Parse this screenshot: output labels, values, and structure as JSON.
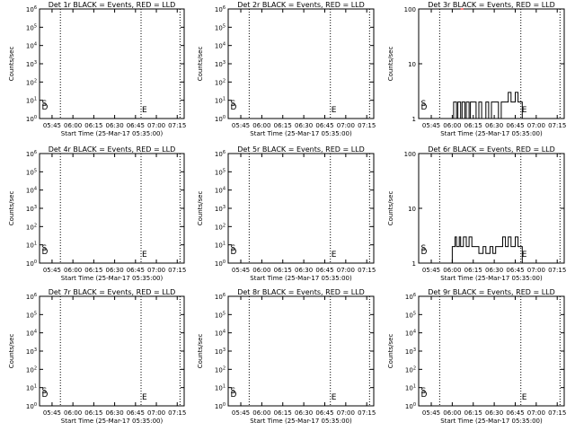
{
  "chart_data": [
    {
      "type": "line",
      "title": "Det 1r BLACK = Events, RED = LLD",
      "ylabel": "Counts/sec",
      "xlabel": "Start Time (25-Mar-17 05:35:00)",
      "yscale": "log",
      "ylim": [
        1,
        1000000
      ],
      "yticks": [
        "10^0",
        "10^1",
        "10^2",
        "10^3",
        "10^4",
        "10^5",
        "10^6"
      ],
      "xlim": [
        "05:36",
        "07:20"
      ],
      "xticks": [
        "05:45",
        "06:00",
        "06:15",
        "06:30",
        "06:45",
        "07:00",
        "07:15"
      ],
      "markers": [
        {
          "label": "D",
          "x": "05:37"
        },
        {
          "label": "S",
          "x": "05:37"
        },
        {
          "label": "E",
          "x": "06:49"
        }
      ],
      "series": [
        {
          "color": "#000000",
          "x": [],
          "values": []
        }
      ]
    },
    {
      "type": "line",
      "title": "Det 2r BLACK = Events, RED = LLD",
      "ylabel": "Counts/sec",
      "xlabel": "Start Time (25-Mar-17 05:35:00)",
      "yscale": "log",
      "ylim": [
        1,
        1000000
      ],
      "yticks": [
        "10^0",
        "10^1",
        "10^2",
        "10^3",
        "10^4",
        "10^5",
        "10^6"
      ],
      "xlim": [
        "05:36",
        "07:20"
      ],
      "xticks": [
        "05:45",
        "06:00",
        "06:15",
        "06:30",
        "06:45",
        "07:00",
        "07:15"
      ],
      "markers": [
        {
          "label": "D",
          "x": "05:37"
        },
        {
          "label": "S",
          "x": "05:37"
        },
        {
          "label": "E",
          "x": "06:49"
        }
      ],
      "series": [
        {
          "color": "#000000",
          "x": [],
          "values": []
        }
      ]
    },
    {
      "type": "line",
      "title": "Det 3r BLACK = Events, RED = LLD",
      "ylabel": "Counts/sec",
      "xlabel": "Start Time (25-Mar-17 05:35:00)",
      "yscale": "log",
      "ylim": [
        1,
        100
      ],
      "yticks": [
        "1",
        "10",
        "100"
      ],
      "xlim": [
        "05:36",
        "07:20"
      ],
      "xticks": [
        "05:45",
        "06:00",
        "06:15",
        "06:30",
        "06:45",
        "07:00",
        "07:15"
      ],
      "markers": [
        {
          "label": "D",
          "x": "05:37"
        },
        {
          "label": "S",
          "x": "05:37"
        },
        {
          "label": "E",
          "x": "06:49"
        }
      ],
      "series": [
        {
          "color": "#000000",
          "x": [
            "06:00",
            "06:01",
            "06:03",
            "06:04",
            "06:06",
            "06:07",
            "06:09",
            "06:10",
            "06:12",
            "06:13",
            "06:17",
            "06:19",
            "06:21",
            "06:24",
            "06:26",
            "06:28",
            "06:31",
            "06:33",
            "06:35",
            "06:38",
            "06:40",
            "06:42",
            "06:43",
            "06:45",
            "06:47",
            "06:50"
          ],
          "values": [
            1,
            2,
            1,
            2,
            1,
            2,
            1,
            2,
            1,
            2,
            1,
            2,
            1,
            2,
            1,
            2,
            2,
            1,
            2,
            2,
            3,
            2,
            2,
            3,
            2,
            1
          ]
        },
        {
          "color": "#ff0000",
          "x": [
            "06:06",
            "06:08"
          ],
          "values": [
            100,
            100
          ]
        }
      ]
    },
    {
      "type": "line",
      "title": "Det 4r BLACK = Events, RED = LLD",
      "ylabel": "Counts/sec",
      "xlabel": "Start Time (25-Mar-17 05:35:00)",
      "yscale": "log",
      "ylim": [
        1,
        1000000
      ],
      "yticks": [
        "10^0",
        "10^1",
        "10^2",
        "10^3",
        "10^4",
        "10^5",
        "10^6"
      ],
      "xlim": [
        "05:36",
        "07:20"
      ],
      "xticks": [
        "05:45",
        "06:00",
        "06:15",
        "06:30",
        "06:45",
        "07:00",
        "07:15"
      ],
      "markers": [
        {
          "label": "D",
          "x": "05:37"
        },
        {
          "label": "S",
          "x": "05:37"
        },
        {
          "label": "E",
          "x": "06:49"
        }
      ],
      "series": [
        {
          "color": "#000000",
          "x": [],
          "values": []
        }
      ]
    },
    {
      "type": "line",
      "title": "Det 5r BLACK = Events, RED = LLD",
      "ylabel": "Counts/sec",
      "xlabel": "Start Time (25-Mar-17 05:35:00)",
      "yscale": "log",
      "ylim": [
        1,
        1000000
      ],
      "yticks": [
        "10^0",
        "10^1",
        "10^2",
        "10^3",
        "10^4",
        "10^5",
        "10^6"
      ],
      "xlim": [
        "05:36",
        "07:20"
      ],
      "xticks": [
        "05:45",
        "06:00",
        "06:15",
        "06:30",
        "06:45",
        "07:00",
        "07:15"
      ],
      "markers": [
        {
          "label": "D",
          "x": "05:37"
        },
        {
          "label": "S",
          "x": "05:37"
        },
        {
          "label": "E",
          "x": "06:49"
        }
      ],
      "series": [
        {
          "color": "#000000",
          "x": [],
          "values": []
        }
      ]
    },
    {
      "type": "line",
      "title": "Det 6r BLACK = Events, RED = LLD",
      "ylabel": "Counts/sec",
      "xlabel": "Start Time (25-Mar-17 05:35:00)",
      "yscale": "log",
      "ylim": [
        1,
        100
      ],
      "yticks": [
        "1",
        "10",
        "100"
      ],
      "xlim": [
        "05:36",
        "07:20"
      ],
      "xticks": [
        "05:45",
        "06:00",
        "06:15",
        "06:30",
        "06:45",
        "07:00",
        "07:15"
      ],
      "markers": [
        {
          "label": "D",
          "x": "05:37"
        },
        {
          "label": "S",
          "x": "05:37"
        },
        {
          "label": "E",
          "x": "06:49"
        }
      ],
      "series": [
        {
          "color": "#000000",
          "x": [
            "05:59",
            "06:00",
            "06:02",
            "06:03",
            "06:05",
            "06:06",
            "06:08",
            "06:10",
            "06:12",
            "06:14",
            "06:17",
            "06:19",
            "06:22",
            "06:24",
            "06:27",
            "06:29",
            "06:31",
            "06:34",
            "06:36",
            "06:38",
            "06:40",
            "06:42",
            "06:45",
            "06:47",
            "06:50"
          ],
          "values": [
            1,
            2,
            3,
            2,
            3,
            2,
            3,
            2,
            3,
            2,
            2,
            1.5,
            2,
            1.5,
            2,
            1.5,
            2,
            2,
            3,
            2,
            3,
            2,
            3,
            2,
            1
          ]
        }
      ]
    },
    {
      "type": "line",
      "title": "Det 7r BLACK = Events, RED = LLD",
      "ylabel": "Counts/sec",
      "xlabel": "Start Time (25-Mar-17 05:35:00)",
      "yscale": "log",
      "ylim": [
        1,
        1000000
      ],
      "yticks": [
        "10^0",
        "10^1",
        "10^2",
        "10^3",
        "10^4",
        "10^5",
        "10^6"
      ],
      "xlim": [
        "05:36",
        "07:20"
      ],
      "xticks": [
        "05:45",
        "06:00",
        "06:15",
        "06:30",
        "06:45",
        "07:00",
        "07:15"
      ],
      "markers": [
        {
          "label": "D",
          "x": "05:37"
        },
        {
          "label": "S",
          "x": "05:37"
        },
        {
          "label": "E",
          "x": "06:49"
        }
      ],
      "series": [
        {
          "color": "#000000",
          "x": [],
          "values": []
        }
      ]
    },
    {
      "type": "line",
      "title": "Det 8r BLACK = Events, RED = LLD",
      "ylabel": "Counts/sec",
      "xlabel": "Start Time (25-Mar-17 05:35:00)",
      "yscale": "log",
      "ylim": [
        1,
        1000000
      ],
      "yticks": [
        "10^0",
        "10^1",
        "10^2",
        "10^3",
        "10^4",
        "10^5",
        "10^6"
      ],
      "xlim": [
        "05:36",
        "07:20"
      ],
      "xticks": [
        "05:45",
        "06:00",
        "06:15",
        "06:30",
        "06:45",
        "07:00",
        "07:15"
      ],
      "markers": [
        {
          "label": "D",
          "x": "05:37"
        },
        {
          "label": "S",
          "x": "05:37"
        },
        {
          "label": "E",
          "x": "06:49"
        }
      ],
      "series": [
        {
          "color": "#000000",
          "x": [],
          "values": []
        }
      ]
    },
    {
      "type": "line",
      "title": "Det 9r BLACK = Events, RED = LLD",
      "ylabel": "Counts/sec",
      "xlabel": "Start Time (25-Mar-17 05:35:00)",
      "yscale": "log",
      "ylim": [
        1,
        1000000
      ],
      "yticks": [
        "10^0",
        "10^1",
        "10^2",
        "10^3",
        "10^4",
        "10^5",
        "10^6"
      ],
      "xlim": [
        "05:36",
        "07:20"
      ],
      "xticks": [
        "05:45",
        "06:00",
        "06:15",
        "06:30",
        "06:45",
        "07:00",
        "07:15"
      ],
      "markers": [
        {
          "label": "D",
          "x": "05:37"
        },
        {
          "label": "S",
          "x": "05:37"
        },
        {
          "label": "E",
          "x": "06:49"
        }
      ],
      "series": [
        {
          "color": "#000000",
          "x": [],
          "values": []
        }
      ]
    }
  ]
}
